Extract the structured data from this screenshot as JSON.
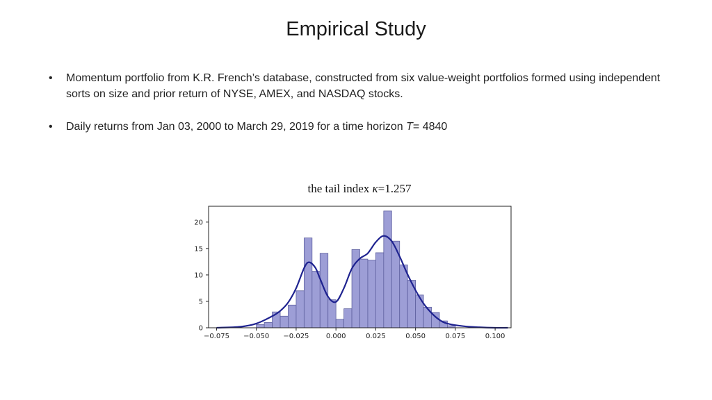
{
  "title": "Empirical Study",
  "bullets": [
    {
      "text": "Momentum portfolio from K.R. French’s database, constructed from six value-weight portfolios formed using independent sorts on size and prior return of NYSE, AMEX, and NASDAQ stocks."
    },
    {
      "text_before": "Daily returns from Jan 03, 2000 to March 29, 2019 for a time horizon ",
      "italic": "T",
      "text_after": "= 4840"
    }
  ],
  "bullet_symbol": "•",
  "chart_title": {
    "prefix": "the tail index ",
    "symbol": "κ",
    "suffix": "=1.257"
  },
  "chart_data": {
    "type": "bar",
    "subtype": "histogram-with-density",
    "title": "the tail index κ=1.257",
    "xlim": [
      -0.08,
      0.11
    ],
    "ylim": [
      0,
      23
    ],
    "x_ticks": [
      -0.075,
      -0.05,
      -0.025,
      0.0,
      0.025,
      0.05,
      0.075,
      0.1
    ],
    "x_tick_labels": [
      "−0.075",
      "−0.050",
      "−0.025",
      "0.000",
      "0.025",
      "0.050",
      "0.075",
      "0.100"
    ],
    "y_ticks": [
      0,
      5,
      10,
      15,
      20
    ],
    "y_tick_labels": [
      "0",
      "5",
      "10",
      "15",
      "20"
    ],
    "bin_width": 0.005,
    "bins": [
      {
        "x0": -0.05,
        "value": 0.6
      },
      {
        "x0": -0.045,
        "value": 1.0
      },
      {
        "x0": -0.04,
        "value": 3.0
      },
      {
        "x0": -0.035,
        "value": 2.2
      },
      {
        "x0": -0.03,
        "value": 4.3
      },
      {
        "x0": -0.025,
        "value": 7.0
      },
      {
        "x0": -0.02,
        "value": 17.0
      },
      {
        "x0": -0.015,
        "value": 10.7
      },
      {
        "x0": -0.01,
        "value": 14.1
      },
      {
        "x0": -0.005,
        "value": 5.3
      },
      {
        "x0": 0.0,
        "value": 1.6
      },
      {
        "x0": 0.005,
        "value": 3.6
      },
      {
        "x0": 0.01,
        "value": 14.8
      },
      {
        "x0": 0.015,
        "value": 13.0
      },
      {
        "x0": 0.02,
        "value": 12.8
      },
      {
        "x0": 0.025,
        "value": 14.2
      },
      {
        "x0": 0.03,
        "value": 22.1
      },
      {
        "x0": 0.035,
        "value": 16.4
      },
      {
        "x0": 0.04,
        "value": 11.9
      },
      {
        "x0": 0.045,
        "value": 9.0
      },
      {
        "x0": 0.05,
        "value": 6.2
      },
      {
        "x0": 0.055,
        "value": 3.9
      },
      {
        "x0": 0.06,
        "value": 2.9
      },
      {
        "x0": 0.065,
        "value": 1.3
      },
      {
        "x0": 0.07,
        "value": 0.4
      }
    ],
    "density_curve": {
      "x": [
        -0.075,
        -0.06,
        -0.05,
        -0.04,
        -0.035,
        -0.03,
        -0.025,
        -0.02,
        -0.017,
        -0.013,
        -0.01,
        -0.005,
        0.0,
        0.005,
        0.01,
        0.015,
        0.02,
        0.025,
        0.03,
        0.035,
        0.04,
        0.045,
        0.05,
        0.055,
        0.06,
        0.065,
        0.07,
        0.08,
        0.09,
        0.1,
        0.108
      ],
      "y": [
        0.0,
        0.2,
        0.8,
        2.2,
        3.2,
        4.8,
        7.5,
        11.3,
        12.4,
        11.4,
        9.3,
        5.9,
        4.9,
        7.5,
        11.2,
        13.1,
        14.1,
        16.2,
        17.4,
        16.4,
        13.5,
        10.1,
        7.1,
        4.6,
        2.8,
        1.5,
        0.8,
        0.3,
        0.1,
        0.0,
        0.0
      ]
    },
    "bar_color": "#9d9ed6",
    "bar_edge_color": "#5d5f9e",
    "curve_color": "#1f2390",
    "grid": false
  }
}
